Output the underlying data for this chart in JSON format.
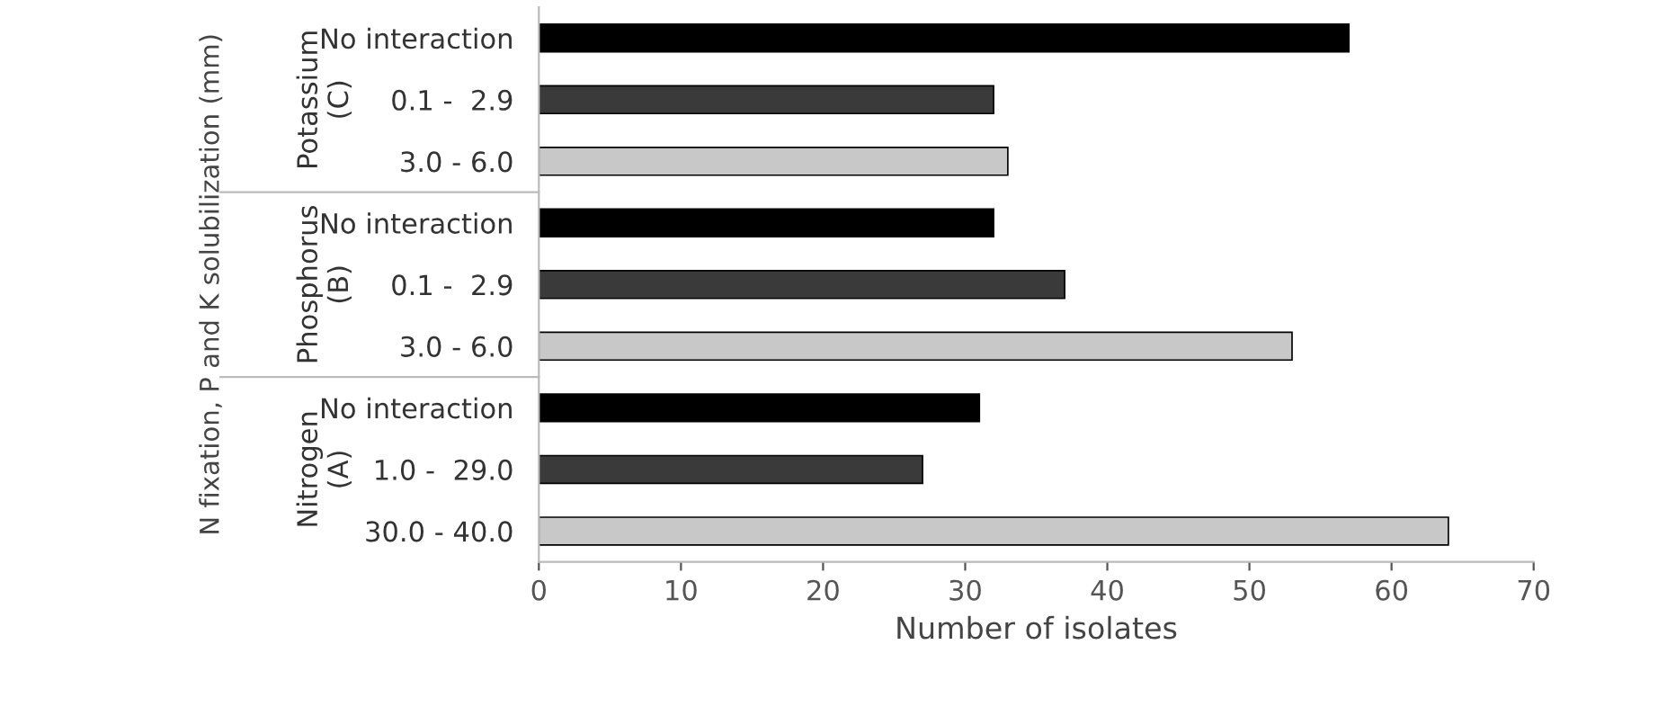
{
  "chart_data": {
    "type": "bar",
    "orientation": "horizontal",
    "categories": [
      "No interaction",
      "0.1 -  2.9",
      "3.0 - 6.0",
      "No interaction",
      "0.1 -  2.9",
      "3.0 - 6.0",
      "No interaction",
      "1.0 -  29.0",
      "30.0 - 40.0"
    ],
    "values": [
      57,
      32,
      33,
      32,
      37,
      53,
      31,
      27,
      64
    ],
    "colors": [
      "#000000",
      "#3a3a3a",
      "#c8c8c8",
      "#000000",
      "#3a3a3a",
      "#c8c8c8",
      "#000000",
      "#3a3a3a",
      "#c8c8c8"
    ],
    "xlim": [
      0,
      70
    ],
    "xticks": [
      0,
      10,
      20,
      30,
      40,
      50,
      60,
      70
    ],
    "xlabel": "Number of isolates",
    "ylabel": "N fixation, P and K solubilization (mm)",
    "annotations": [
      "Potassium\n(C)",
      "Phosphorus\n(B)",
      "Nitrogen\n(A)"
    ],
    "grid": false,
    "legend": false
  }
}
